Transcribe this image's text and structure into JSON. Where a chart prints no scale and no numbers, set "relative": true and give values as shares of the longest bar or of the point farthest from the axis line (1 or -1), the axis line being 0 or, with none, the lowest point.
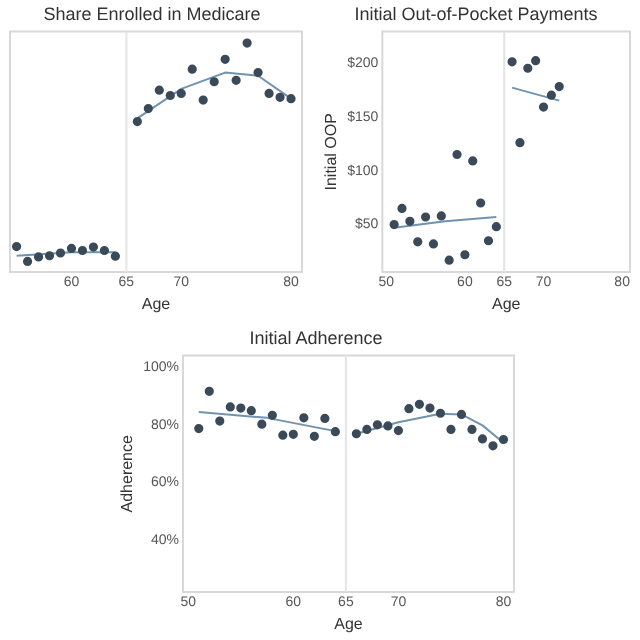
{
  "chart_data": [
    {
      "type": "scatter",
      "title": "Share Enrolled in Medicare",
      "xlabel": "Age",
      "relative": true,
      "xlim": [
        54.4,
        81
      ],
      "xticks": [
        60,
        65,
        70,
        80
      ],
      "ref_lines": [
        {
          "axis": "x",
          "value": 65,
          "color": "#e4e4e4"
        }
      ],
      "series": [
        {
          "color": "#3b4a58",
          "x": [
            55,
            56,
            57,
            58,
            59,
            60,
            61,
            62,
            63,
            64,
            66,
            67,
            68,
            69,
            70,
            71,
            72,
            73,
            74,
            75,
            76,
            77,
            78,
            79,
            80
          ],
          "values": [
            0.111,
            0.046,
            0.066,
            0.071,
            0.083,
            0.103,
            0.094,
            0.109,
            0.094,
            0.069,
            0.657,
            0.714,
            0.794,
            0.771,
            0.78,
            0.886,
            0.751,
            0.831,
            0.929,
            0.837,
            1,
            0.871,
            0.78,
            0.763,
            0.757
          ]
        },
        {
          "type": "line",
          "color": "#6f93b0",
          "x": [
            55,
            60,
            64
          ],
          "values": [
            0.071,
            0.086,
            0.086
          ]
        },
        {
          "type": "line",
          "color": "#6f93b0",
          "x": [
            66,
            70,
            74,
            77,
            80
          ],
          "values": [
            0.671,
            0.8,
            0.871,
            0.857,
            0.757
          ]
        }
      ]
    },
    {
      "type": "scatter",
      "title": "Initial Out-of-Pocket Payments",
      "xlabel": "Age",
      "ylabel": "Initial OOP",
      "xlim": [
        49.5,
        81
      ],
      "xticks": [
        50,
        60,
        65,
        70,
        80
      ],
      "ylim": [
        6,
        229
      ],
      "yticks": [
        {
          "value": 50,
          "label": "$50"
        },
        {
          "value": 100,
          "label": "$100"
        },
        {
          "value": 150,
          "label": "$150"
        },
        {
          "value": 200,
          "label": "$200"
        }
      ],
      "ref_lines": [
        {
          "axis": "x",
          "value": 65,
          "color": "#e4e4e4"
        }
      ],
      "series": [
        {
          "color": "#3b4a58",
          "x": [
            51,
            52,
            53,
            54,
            55,
            56,
            57,
            58,
            59,
            60,
            61,
            62,
            63,
            64,
            66,
            67,
            68,
            69,
            70,
            71,
            72
          ],
          "values": [
            50,
            65,
            53,
            34,
            57,
            32,
            58,
            17,
            115,
            22,
            109,
            70,
            35,
            48,
            201,
            126,
            195,
            202,
            159,
            170,
            178
          ]
        },
        {
          "type": "line",
          "color": "#6f93b0",
          "x": [
            51,
            57.5,
            64
          ],
          "values": [
            47,
            53,
            57
          ]
        },
        {
          "type": "line",
          "color": "#6f93b0",
          "x": [
            66,
            72
          ],
          "values": [
            177,
            165
          ]
        }
      ]
    },
    {
      "type": "scatter",
      "title": "Initial Adherence",
      "xlabel": "Age",
      "ylabel": "Adherence",
      "xlim": [
        49.5,
        81
      ],
      "xticks": [
        50,
        60,
        65,
        70,
        80
      ],
      "ylim": [
        22,
        104
      ],
      "yticks": [
        {
          "value": 40,
          "label": "40%"
        },
        {
          "value": 60,
          "label": "60%"
        },
        {
          "value": 80,
          "label": "80%"
        },
        {
          "value": 100,
          "label": "100%"
        }
      ],
      "ref_lines": [
        {
          "axis": "x",
          "value": 65,
          "color": "#e4e4e4"
        }
      ],
      "series": [
        {
          "color": "#3b4a58",
          "x": [
            51,
            52,
            53,
            54,
            55,
            56,
            57,
            58,
            59,
            60,
            61,
            62,
            63,
            64,
            66,
            67,
            68,
            69,
            70,
            71,
            72,
            73,
            74,
            75,
            76,
            77,
            78,
            79,
            80
          ],
          "values": [
            78.7,
            91.6,
            81.3,
            86.2,
            85.8,
            84.9,
            80.2,
            83.3,
            76.4,
            76.7,
            82.4,
            76,
            82.2,
            77.6,
            76.9,
            78.4,
            80,
            79.6,
            78,
            85.6,
            87.1,
            85.8,
            84,
            78.4,
            83.6,
            78.4,
            75.1,
            72.7,
            74.9
          ]
        },
        {
          "type": "line",
          "color": "#6f93b0",
          "x": [
            51,
            57.5,
            64
          ],
          "values": [
            84.4,
            82.4,
            77.8
          ]
        },
        {
          "type": "line",
          "color": "#6f93b0",
          "x": [
            66,
            70,
            74,
            76,
            78,
            80
          ],
          "values": [
            76.9,
            80.9,
            83.8,
            83.6,
            79.8,
            73.8
          ]
        }
      ]
    }
  ]
}
